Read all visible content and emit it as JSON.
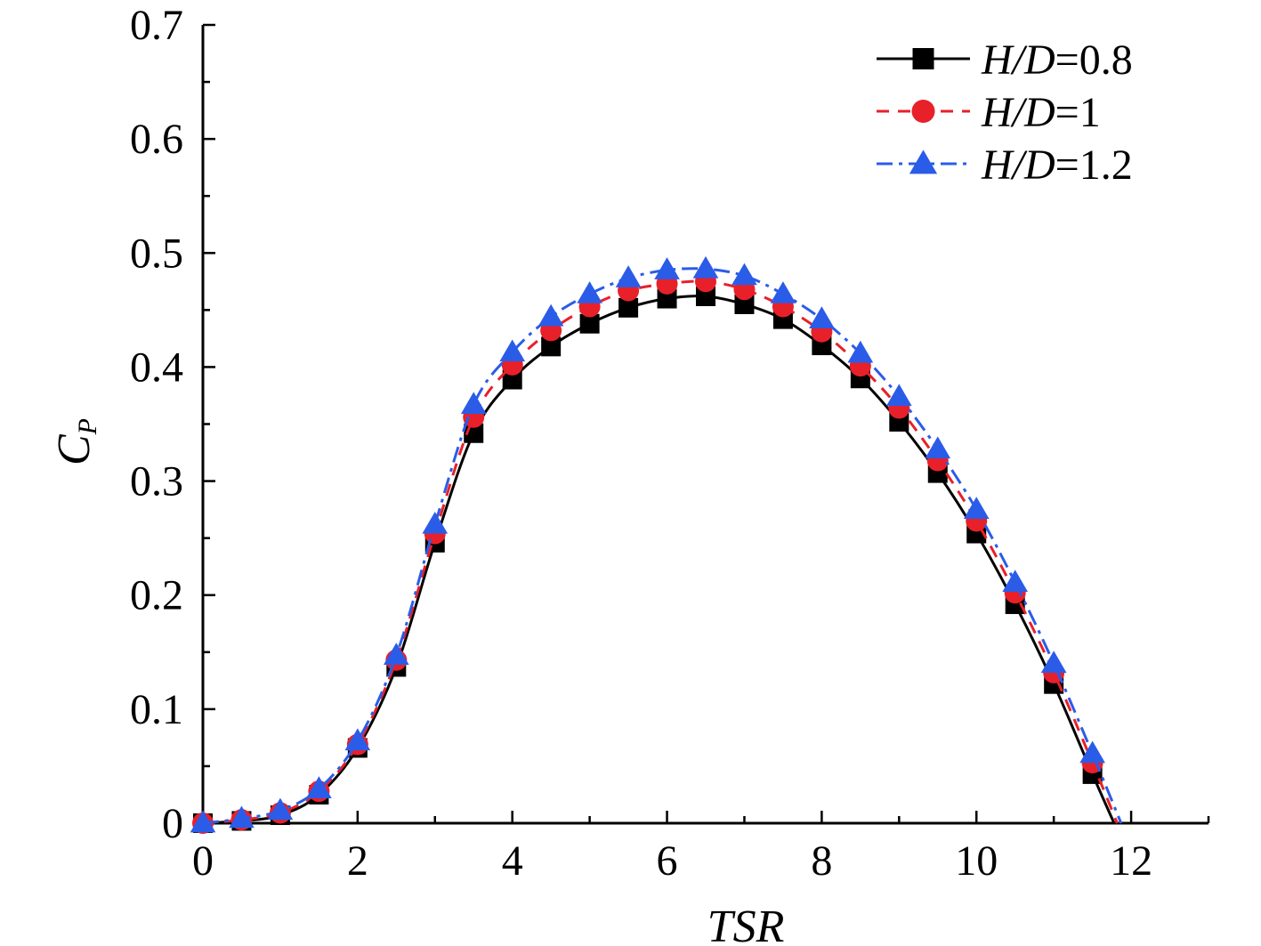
{
  "chart_data": {
    "type": "line",
    "title": "",
    "xlabel": "TSR",
    "ylabel": "C",
    "ylabel_sub": "P",
    "xlim": [
      0,
      13
    ],
    "ylim": [
      0,
      0.7
    ],
    "xticks": [
      0,
      2,
      4,
      6,
      8,
      10,
      12
    ],
    "xtick_labels": [
      "0",
      "2",
      "4",
      "6",
      "8",
      "10",
      "12"
    ],
    "yticks": [
      0,
      0.1,
      0.2,
      0.3,
      0.4,
      0.5,
      0.6,
      0.7
    ],
    "ytick_labels": [
      "0",
      "0.1",
      "0.2",
      "0.3",
      "0.4",
      "0.5",
      "0.6",
      "0.7"
    ],
    "grid": false,
    "legend_position": "top-right",
    "x": [
      0,
      0.5,
      1,
      1.5,
      2,
      2.5,
      3,
      3.5,
      4,
      4.5,
      5,
      5.5,
      6,
      6.5,
      7,
      7.5,
      8,
      8.5,
      9,
      9.5,
      10,
      10.5,
      11,
      11.5
    ],
    "series": [
      {
        "name": "H/D=0.8",
        "legend_italic": "H/D",
        "legend_value": "=0.8",
        "color": "#000000",
        "marker": "square",
        "dash": "",
        "values": [
          0.0,
          0.002,
          0.007,
          0.025,
          0.066,
          0.137,
          0.246,
          0.342,
          0.389,
          0.418,
          0.438,
          0.452,
          0.46,
          0.462,
          0.455,
          0.442,
          0.419,
          0.39,
          0.352,
          0.307,
          0.254,
          0.192,
          0.122,
          0.043
        ],
        "end_x": 11.78
      },
      {
        "name": "H/D=1",
        "legend_italic": "H/D",
        "legend_value": "=1",
        "color": "#e8202a",
        "marker": "circle",
        "dash": "14,10",
        "values": [
          0.0,
          0.003,
          0.009,
          0.028,
          0.069,
          0.143,
          0.254,
          0.356,
          0.402,
          0.432,
          0.453,
          0.467,
          0.473,
          0.475,
          0.468,
          0.453,
          0.431,
          0.401,
          0.364,
          0.318,
          0.265,
          0.202,
          0.132,
          0.053
        ],
        "end_x": 11.82
      },
      {
        "name": "H/D=1.2",
        "legend_italic": "H/D",
        "legend_value": "=1.2",
        "color": "#2b5ce8",
        "marker": "triangle",
        "dash": "18,7,4,7",
        "values": [
          0.0,
          0.004,
          0.011,
          0.03,
          0.072,
          0.147,
          0.262,
          0.367,
          0.413,
          0.444,
          0.464,
          0.478,
          0.485,
          0.486,
          0.48,
          0.464,
          0.442,
          0.412,
          0.374,
          0.328,
          0.275,
          0.211,
          0.14,
          0.061
        ],
        "end_x": 11.87
      }
    ]
  }
}
